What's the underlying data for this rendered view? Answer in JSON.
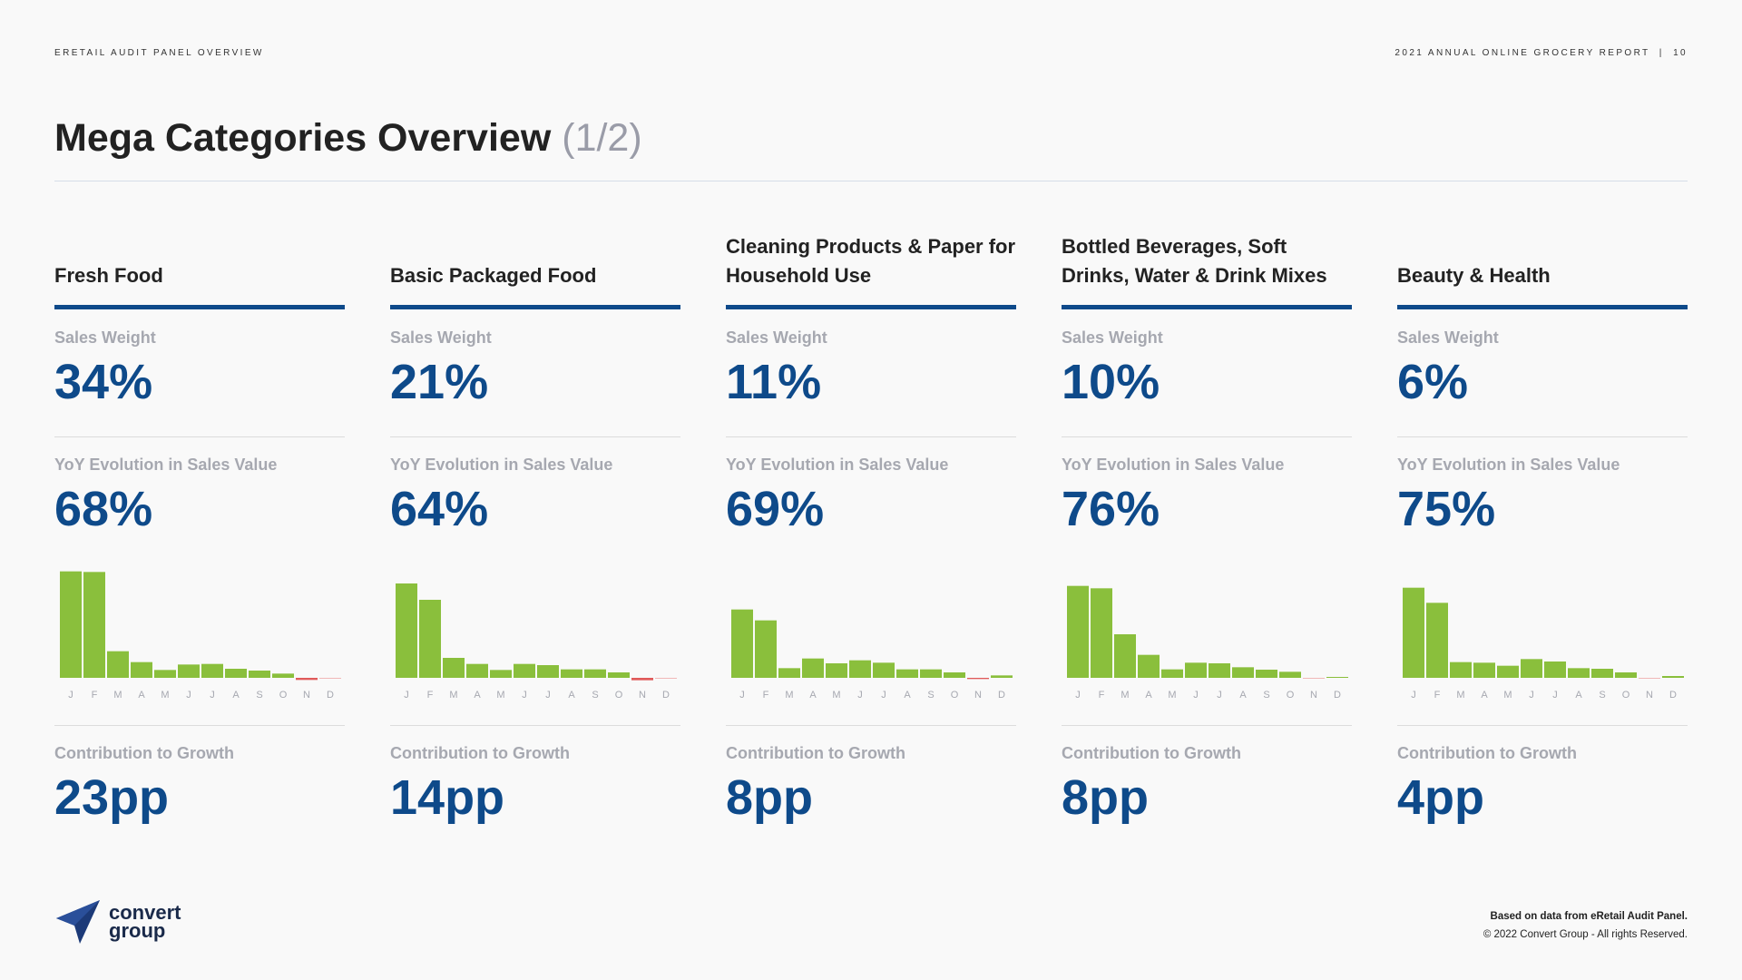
{
  "header": {
    "left": "ERETAIL AUDIT PANEL OVERVIEW",
    "right": "2021 ANNUAL ONLINE GROCERY REPORT  |  10"
  },
  "title": {
    "main": "Mega Categories Overview",
    "sub": "(1/2)"
  },
  "labels": {
    "sales_weight": "Sales Weight",
    "yoy": "YoY Evolution in Sales Value",
    "contribution": "Contribution to Growth"
  },
  "colors": {
    "accent": "#0e4a8a",
    "positive": "#8abf3c",
    "negative": "#e05a5a"
  },
  "categories": [
    {
      "name": "Fresh Food",
      "sales_weight": "34%",
      "yoy": "68%",
      "contribution": "23pp"
    },
    {
      "name": "Basic Packaged Food",
      "sales_weight": "21%",
      "yoy": "64%",
      "contribution": "14pp"
    },
    {
      "name": "Cleaning Products & Paper for Household Use",
      "sales_weight": "11%",
      "yoy": "69%",
      "contribution": "8pp"
    },
    {
      "name": "Bottled Beverages, Soft Drinks, Water & Drink Mixes",
      "sales_weight": "10%",
      "yoy": "76%",
      "contribution": "8pp"
    },
    {
      "name": "Beauty & Health",
      "sales_weight": "6%",
      "yoy": "75%",
      "contribution": "4pp"
    }
  ],
  "chart_data": [
    {
      "type": "bar",
      "title": "Fresh Food",
      "categories": [
        "J",
        "F",
        "M",
        "A",
        "M",
        "J",
        "J",
        "A",
        "S",
        "O",
        "N",
        "D"
      ],
      "values": [
        352,
        350,
        88,
        52,
        26,
        44,
        46,
        30,
        24,
        14,
        -7,
        -2
      ],
      "ylim": [
        -10,
        360
      ]
    },
    {
      "type": "bar",
      "title": "Basic Packaged Food",
      "categories": [
        "J",
        "F",
        "M",
        "A",
        "M",
        "J",
        "J",
        "A",
        "S",
        "O",
        "N",
        "D"
      ],
      "values": [
        312,
        258,
        66,
        46,
        26,
        46,
        42,
        28,
        28,
        18,
        -8,
        -2
      ],
      "ylim": [
        -10,
        360
      ]
    },
    {
      "type": "bar",
      "title": "Cleaning Products & Paper for Household Use",
      "categories": [
        "J",
        "F",
        "M",
        "A",
        "M",
        "J",
        "J",
        "A",
        "S",
        "O",
        "N",
        "D"
      ],
      "values": [
        226,
        190,
        32,
        64,
        48,
        58,
        50,
        28,
        28,
        18,
        -4,
        8
      ],
      "ylim": [
        -10,
        360
      ]
    },
    {
      "type": "bar",
      "title": "Bottled Beverages, Soft Drinks, Water & Drink Mixes",
      "categories": [
        "J",
        "F",
        "M",
        "A",
        "M",
        "J",
        "J",
        "A",
        "S",
        "O",
        "N",
        "D"
      ],
      "values": [
        304,
        296,
        144,
        76,
        28,
        50,
        48,
        35,
        27,
        20,
        -1,
        3
      ],
      "ylim": [
        -10,
        360
      ]
    },
    {
      "type": "bar",
      "title": "Beauty & Health",
      "categories": [
        "J",
        "F",
        "M",
        "A",
        "M",
        "J",
        "J",
        "A",
        "S",
        "O",
        "N",
        "D"
      ],
      "values": [
        298,
        248,
        52,
        50,
        40,
        62,
        54,
        32,
        30,
        18,
        -1,
        6
      ],
      "ylim": [
        -10,
        360
      ]
    }
  ],
  "logo": {
    "line1": "convert",
    "line2": "group"
  },
  "footer": {
    "source": "Based on data from eRetail Audit Panel.",
    "copyright": "© 2022 Convert Group - All rights Reserved."
  }
}
